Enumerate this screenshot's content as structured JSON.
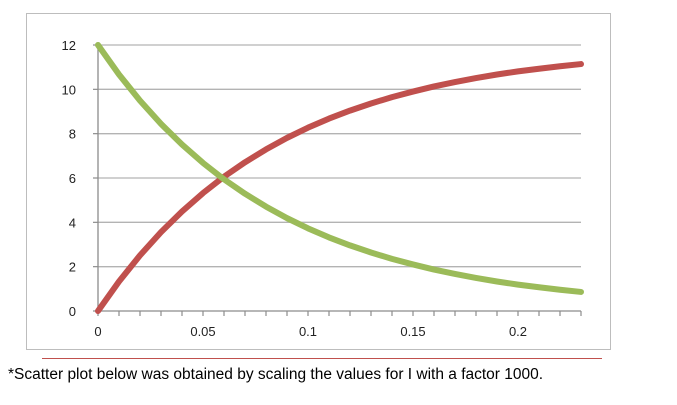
{
  "chart_data": {
    "type": "line",
    "title": "",
    "xlabel": "",
    "ylabel": "",
    "xlim": [
      0,
      0.23
    ],
    "ylim": [
      0,
      12
    ],
    "grid": "horizontal",
    "legend": "none",
    "x_ticks": [
      0,
      0.05,
      0.1,
      0.15,
      0.2
    ],
    "x_tick_labels": [
      "0",
      "0.05",
      "0.1",
      "0.15",
      "0.2"
    ],
    "y_ticks": [
      0,
      2,
      4,
      6,
      8,
      10,
      12
    ],
    "y_tick_labels": [
      "0",
      "2",
      "4",
      "6",
      "8",
      "10",
      "12"
    ],
    "x": [
      0,
      0.01,
      0.02,
      0.03,
      0.04,
      0.05,
      0.06,
      0.07,
      0.08,
      0.09,
      0.1,
      0.11,
      0.12,
      0.13,
      0.14,
      0.15,
      0.16,
      0.17,
      0.18,
      0.19,
      0.2,
      0.21,
      0.22,
      0.23
    ],
    "series": [
      {
        "color": "#c0504d",
        "values": [
          0,
          1.33,
          2.51,
          3.56,
          4.49,
          5.32,
          6.06,
          6.71,
          7.29,
          7.81,
          8.27,
          8.68,
          9.04,
          9.36,
          9.65,
          9.9,
          10.13,
          10.33,
          10.51,
          10.67,
          10.81,
          10.93,
          11.04,
          11.14
        ]
      },
      {
        "color": "#9bbb59",
        "values": [
          12,
          10.67,
          9.49,
          8.44,
          7.51,
          6.68,
          5.94,
          5.29,
          4.71,
          4.19,
          3.73,
          3.32,
          2.96,
          2.64,
          2.35,
          2.1,
          1.87,
          1.67,
          1.49,
          1.33,
          1.19,
          1.07,
          0.96,
          0.86
        ]
      }
    ]
  },
  "footnote": "*Scatter plot below was obtained by scaling the values for I with a factor 1000.",
  "colors": {
    "gridline": "#b3b3b3",
    "axis": "#8c8c8c",
    "rule": "#c0504d"
  }
}
